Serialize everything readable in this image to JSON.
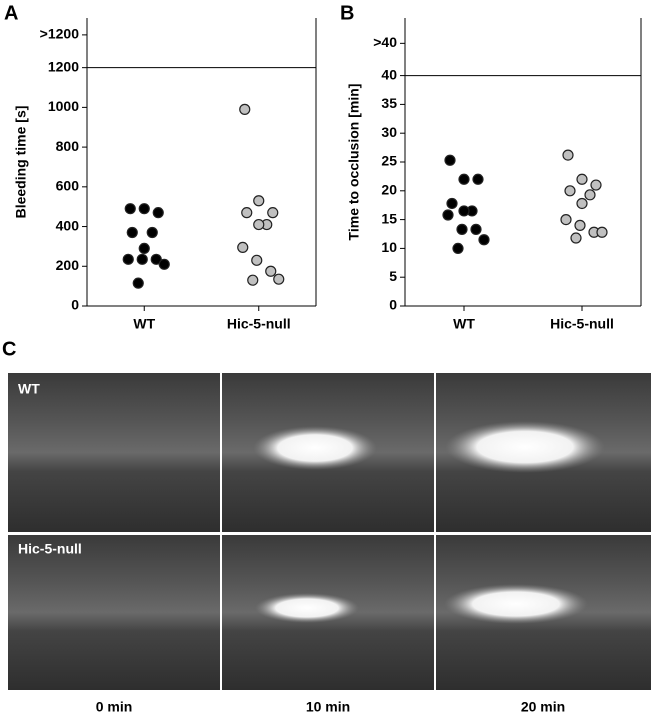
{
  "panel_labels": [
    "A",
    "B",
    "C"
  ],
  "chart_data": [
    {
      "type": "scatter",
      "y_label": "Bleeding time [s]",
      "categories": [
        "WT",
        "Hic-5-null"
      ],
      "series": [
        {
          "name": "WT",
          "color": "#000000",
          "values": [
            490,
            490,
            470,
            370,
            370,
            290,
            235,
            235,
            235,
            210,
            115
          ]
        },
        {
          "name": "Hic-5-null",
          "color": "#c0c0c0",
          "values": [
            990,
            530,
            470,
            470,
            410,
            410,
            295,
            230,
            175,
            135,
            130
          ]
        }
      ],
      "ylim": [
        0,
        1450
      ],
      "yticks": [
        0,
        200,
        400,
        600,
        800,
        1000,
        1200,
        {
          "value": 1365,
          "label": ">1200"
        }
      ],
      "threshold": 1200
    },
    {
      "type": "scatter",
      "y_label": "Time to occlusion [min]",
      "categories": [
        "WT",
        "Hic-5-null"
      ],
      "series": [
        {
          "name": "WT",
          "color": "#000000",
          "values": [
            25.3,
            22,
            22,
            17.8,
            16.5,
            16.5,
            15.8,
            13.3,
            13.3,
            11.5,
            10
          ]
        },
        {
          "name": "Hic-5-null",
          "color": "#c0c0c0",
          "values": [
            26.2,
            22,
            21,
            20,
            19.3,
            17.8,
            15,
            14,
            12.8,
            12.8,
            11.8
          ]
        }
      ],
      "ylim": [
        0,
        50
      ],
      "yticks": [
        0,
        5,
        10,
        15,
        20,
        25,
        30,
        35,
        40,
        {
          "value": 45.6,
          "label": ">40"
        }
      ],
      "threshold": 40
    }
  ],
  "panel_c": {
    "rows": [
      "WT",
      "Hic-5-null"
    ],
    "columns": [
      "0 min",
      "10 min",
      "20 min"
    ]
  }
}
